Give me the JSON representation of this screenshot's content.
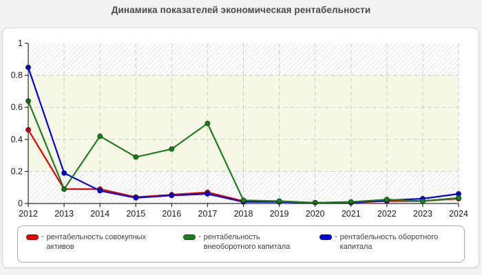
{
  "title": "Динамика показателей экономическая рентабельности",
  "legend": {
    "dash": "-"
  },
  "chart_data": {
    "type": "line",
    "title": "Динамика показателей экономическая рентабельности",
    "categories": [
      "2012",
      "2013",
      "2014",
      "2015",
      "2016",
      "2017",
      "2018",
      "2019",
      "2020",
      "2021",
      "2022",
      "2023",
      "2024"
    ],
    "series": [
      {
        "name": "рентабельность совокупных активов",
        "color": "#e60000",
        "marker_border": "#8b0000",
        "values": [
          0.46,
          0.09,
          0.09,
          0.04,
          0.055,
          0.07,
          0.015,
          0.01,
          0.005,
          0.005,
          0.015,
          0.015,
          0.03
        ]
      },
      {
        "name": "рентабельность внеоборотного капитала",
        "color": "#1e7d1e",
        "marker_border": "#084d08",
        "values": [
          0.64,
          0.09,
          0.42,
          0.29,
          0.34,
          0.5,
          0.02,
          0.015,
          0.005,
          0.01,
          0.025,
          0.015,
          0.035
        ]
      },
      {
        "name": "рентабельность оборотного капитала",
        "color": "#0000dd",
        "marker_border": "#00008b",
        "values": [
          0.85,
          0.19,
          0.08,
          0.035,
          0.05,
          0.06,
          0.01,
          0.01,
          0.005,
          0.005,
          0.02,
          0.03,
          0.06
        ]
      }
    ],
    "xlabel": "",
    "ylabel": "",
    "ylim": [
      0,
      1
    ],
    "y_ticks": [
      "0",
      "0.2",
      "0.4",
      "0.6",
      "0.8",
      "1"
    ],
    "grid": true,
    "band": {
      "from": 0.2,
      "to": 0.8,
      "color": "#f7f7e2"
    },
    "legend_position": "bottom",
    "colors": {
      "grid": "#cccccc",
      "axis": "#2b2b2b",
      "hatch": "#e3e3e3",
      "tick_label": "#1a1a1a"
    }
  }
}
